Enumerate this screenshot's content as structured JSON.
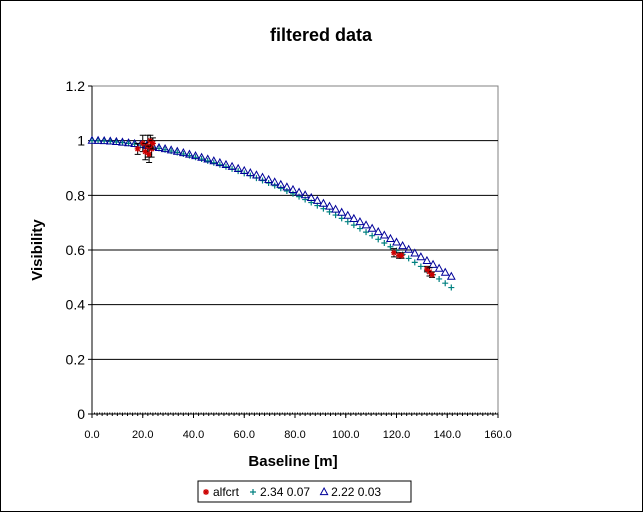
{
  "chart_data": {
    "type": "scatter",
    "title": "filtered data",
    "xlabel": "Baseline [m]",
    "ylabel": "Visibility",
    "xlim": [
      0,
      160
    ],
    "ylim": [
      0,
      1.2
    ],
    "x_ticks": [
      "0.0",
      "20.0",
      "40.0",
      "60.0",
      "80.0",
      "100.0",
      "120.0",
      "140.0",
      "160.0"
    ],
    "y_ticks": [
      "0",
      "0.2",
      "0.4",
      "0.6",
      "0.8",
      "1",
      "1.2"
    ],
    "grid": "horizontal major",
    "legend_position": "bottom",
    "series": [
      {
        "name": "alfcrt",
        "marker": "star",
        "color": "#cc0000",
        "points": [
          {
            "x": 18,
            "y": 0.97,
            "err": 0.02
          },
          {
            "x": 20,
            "y": 0.99,
            "err": 0.03
          },
          {
            "x": 21,
            "y": 0.96,
            "err": 0.03
          },
          {
            "x": 22,
            "y": 0.98,
            "err": 0.04
          },
          {
            "x": 22.5,
            "y": 0.95,
            "err": 0.03
          },
          {
            "x": 23,
            "y": 1.0,
            "err": 0.02
          },
          {
            "x": 23.5,
            "y": 0.97,
            "err": 0.03
          },
          {
            "x": 24,
            "y": 0.99,
            "err": 0.02
          },
          {
            "x": 119,
            "y": 0.59,
            "err": 0.015
          },
          {
            "x": 121,
            "y": 0.58,
            "err": 0.01
          },
          {
            "x": 122,
            "y": 0.58,
            "err": 0.01
          },
          {
            "x": 132,
            "y": 0.53,
            "err": 0.01
          },
          {
            "x": 133,
            "y": 0.52,
            "err": 0.015
          },
          {
            "x": 134,
            "y": 0.51,
            "err": 0.01
          }
        ]
      },
      {
        "name": "2.34 0.07",
        "marker": "plus",
        "color": "#008080",
        "model": {
          "start": 0,
          "end": 142,
          "step": 2.4,
          "start_y": 1.0,
          "end_y": 0.46,
          "exponent": 1.75
        }
      },
      {
        "name": "2.22 0.03",
        "marker": "triangle",
        "color": "#000099",
        "model": {
          "start": 0,
          "end": 142,
          "step": 2.4,
          "start_y": 1.0,
          "end_y": 0.5,
          "exponent": 1.75
        }
      }
    ]
  }
}
